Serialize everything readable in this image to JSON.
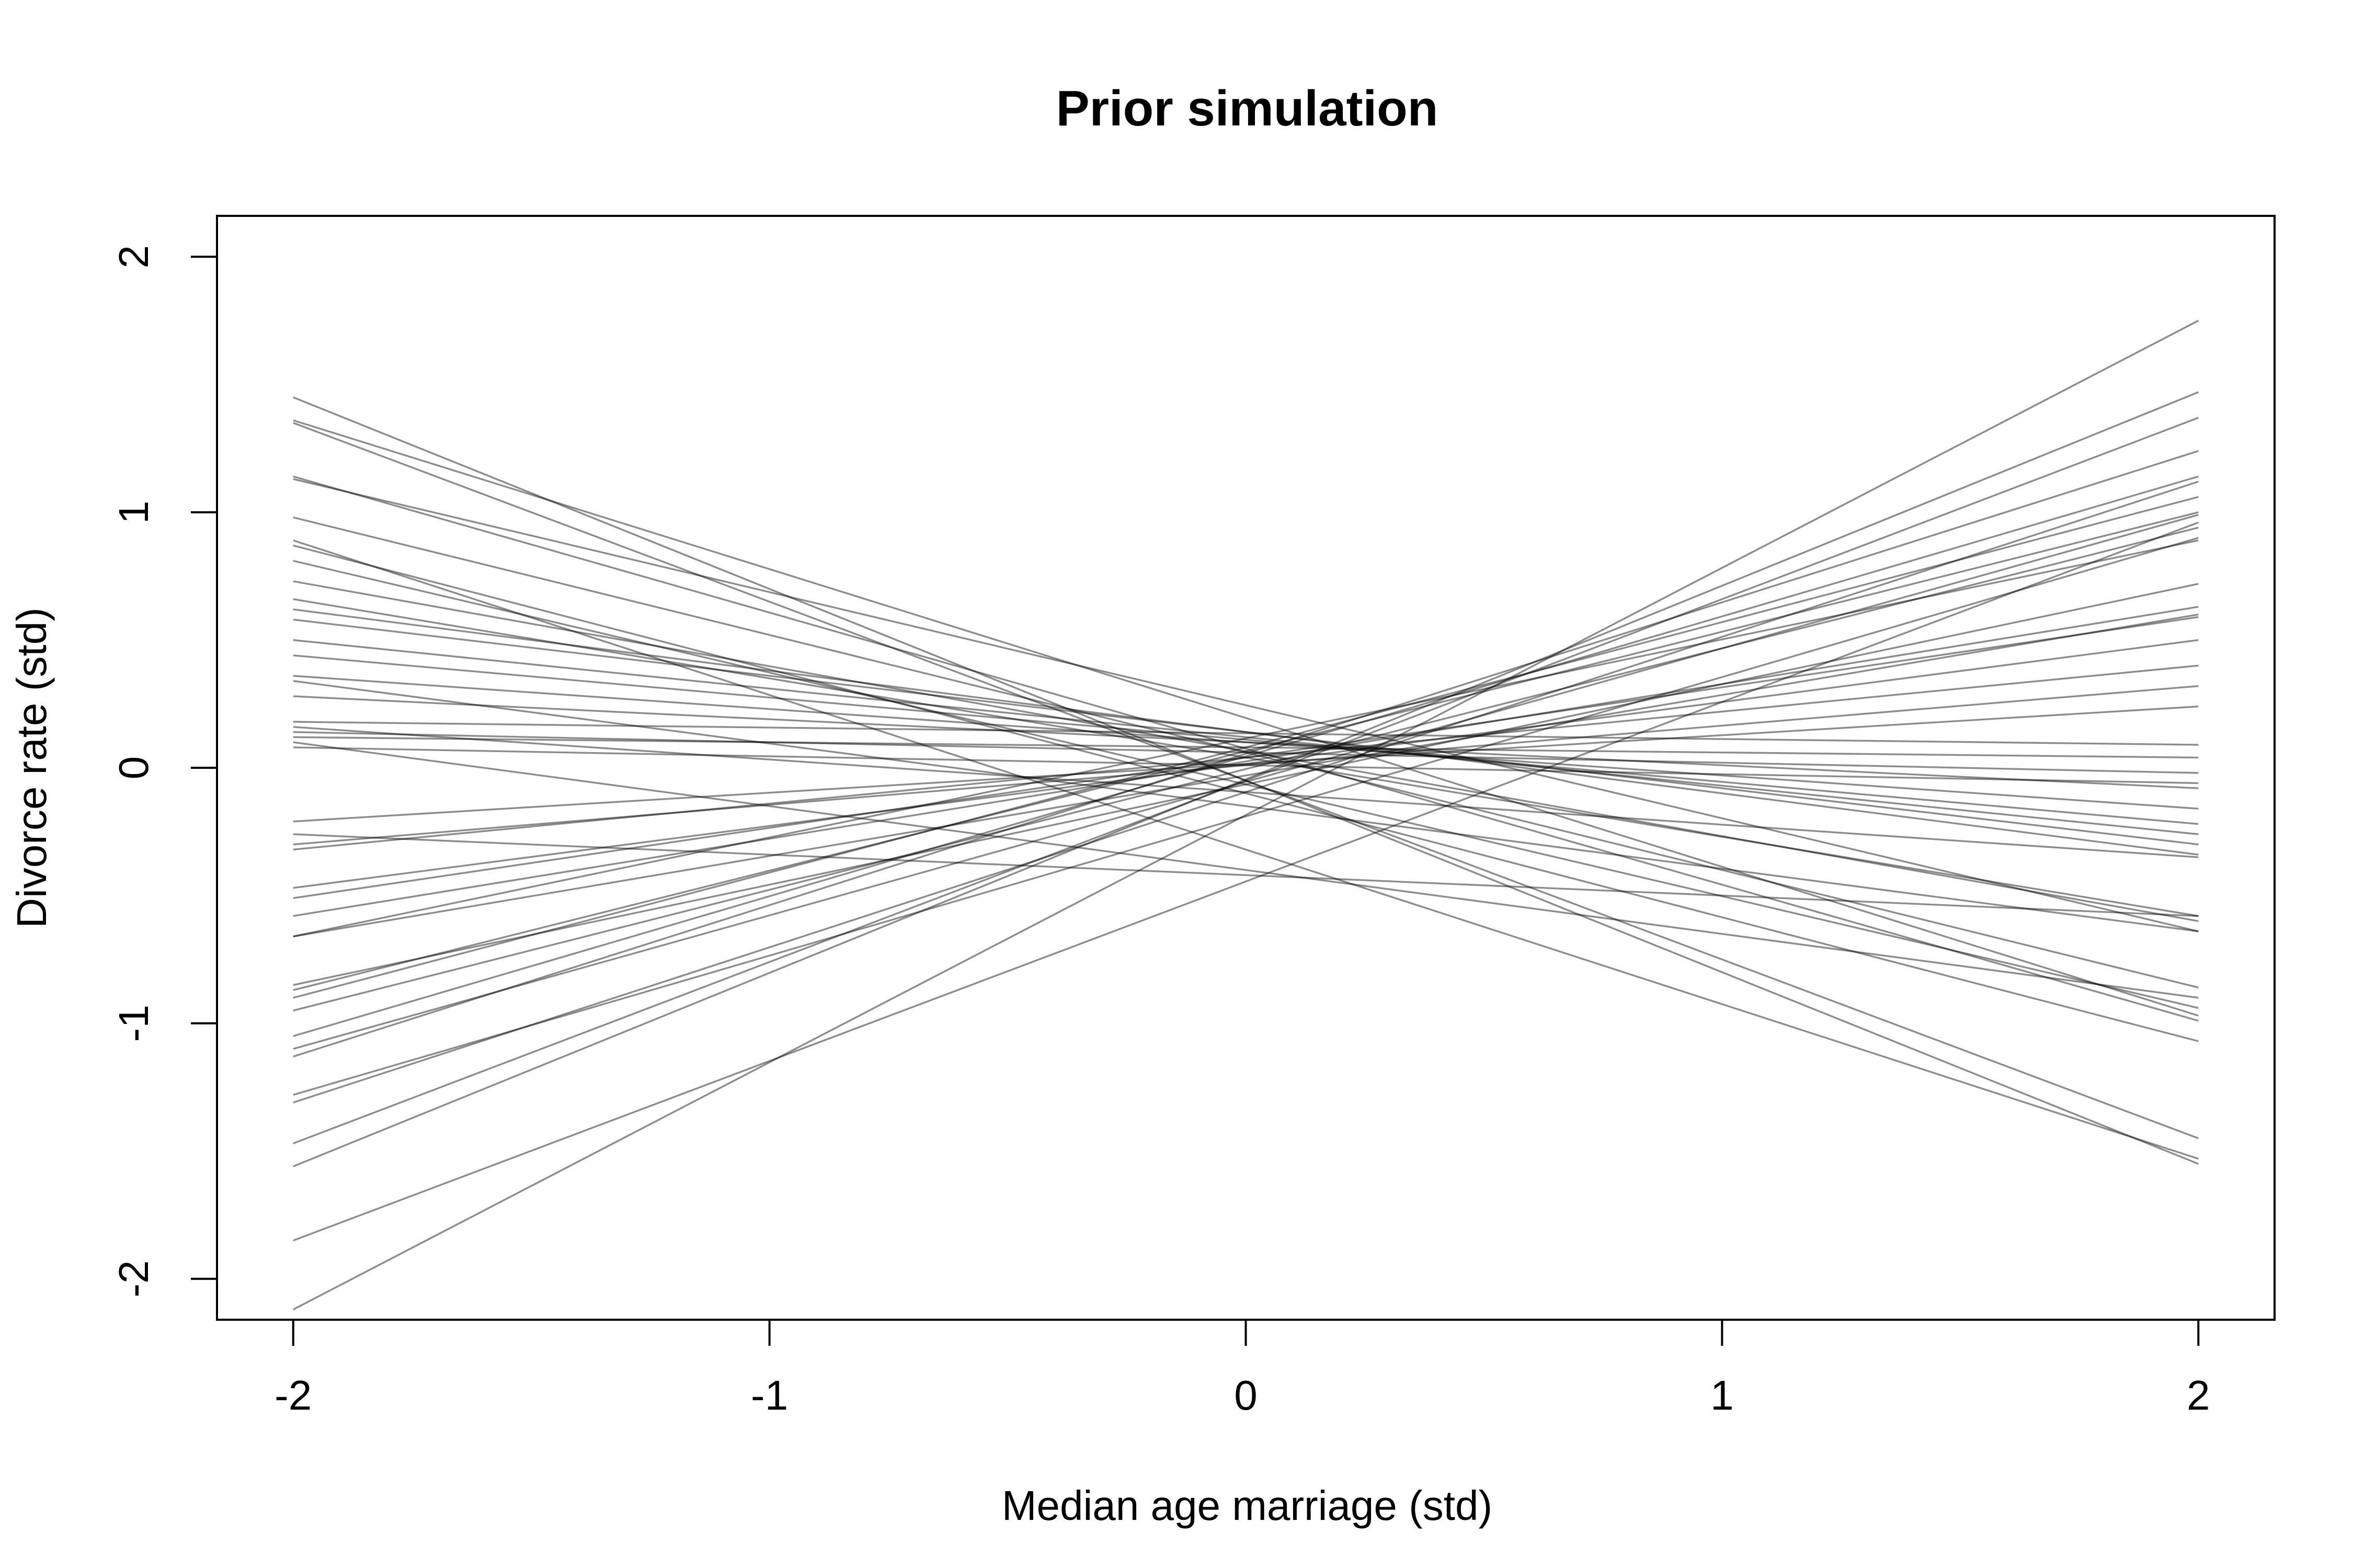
{
  "chart_data": {
    "type": "line",
    "title": "Prior simulation",
    "xlabel": "Median age marriage (std)",
    "ylabel": "Divorce rate (std)",
    "xlim": [
      -2.16,
      2.16
    ],
    "ylim": [
      -2.16,
      2.16
    ],
    "x_ticks": [
      {
        "value": -2,
        "label": "-2"
      },
      {
        "value": -1,
        "label": "-1"
      },
      {
        "value": 0,
        "label": "0"
      },
      {
        "value": 1,
        "label": "1"
      },
      {
        "value": 2,
        "label": "2"
      }
    ],
    "y_ticks": [
      {
        "value": -2,
        "label": "-2"
      },
      {
        "value": -1,
        "label": "-1"
      },
      {
        "value": 0,
        "label": "0"
      },
      {
        "value": 1,
        "label": "1"
      },
      {
        "value": 2,
        "label": "2"
      }
    ],
    "grid": false,
    "line_color": "#000000",
    "line_opacity": 0.45,
    "x": [
      -2,
      2
    ],
    "series": [
      {
        "values": [
          1.45,
          -1.55
        ]
      },
      {
        "values": [
          1.36,
          -0.97
        ]
      },
      {
        "values": [
          1.35,
          -1.45
        ]
      },
      {
        "values": [
          1.14,
          -0.99
        ]
      },
      {
        "values": [
          1.13,
          -0.64
        ]
      },
      {
        "values": [
          0.98,
          -0.86
        ]
      },
      {
        "values": [
          0.89,
          -1.53
        ]
      },
      {
        "values": [
          0.87,
          -1.07
        ]
      },
      {
        "values": [
          0.81,
          -0.94
        ]
      },
      {
        "values": [
          0.73,
          -0.6
        ]
      },
      {
        "values": [
          0.66,
          -0.58
        ]
      },
      {
        "values": [
          0.62,
          -0.34
        ]
      },
      {
        "values": [
          0.58,
          -0.3
        ]
      },
      {
        "values": [
          0.5,
          -0.26
        ]
      },
      {
        "values": [
          0.44,
          -0.22
        ]
      },
      {
        "values": [
          0.36,
          -0.16
        ]
      },
      {
        "values": [
          0.34,
          -0.64
        ]
      },
      {
        "values": [
          0.28,
          -0.08
        ]
      },
      {
        "values": [
          0.18,
          0.09
        ]
      },
      {
        "values": [
          0.16,
          -0.35
        ]
      },
      {
        "values": [
          0.14,
          -0.02
        ]
      },
      {
        "values": [
          0.12,
          0.04
        ]
      },
      {
        "values": [
          0.1,
          -0.9
        ]
      },
      {
        "values": [
          0.08,
          -0.06
        ]
      },
      {
        "values": [
          -0.21,
          0.24
        ]
      },
      {
        "values": [
          -0.26,
          -0.58
        ]
      },
      {
        "values": [
          -0.3,
          0.32
        ]
      },
      {
        "values": [
          -0.32,
          0.4
        ]
      },
      {
        "values": [
          -0.47,
          0.5
        ]
      },
      {
        "values": [
          -0.51,
          0.59
        ]
      },
      {
        "values": [
          -0.58,
          0.63
        ]
      },
      {
        "values": [
          -0.66,
          0.89
        ]
      },
      {
        "values": [
          -0.66,
          0.6
        ]
      },
      {
        "values": [
          -0.85,
          0.72
        ]
      },
      {
        "values": [
          -0.87,
          1.0
        ]
      },
      {
        "values": [
          -0.9,
          1.06
        ]
      },
      {
        "values": [
          -0.95,
          0.94
        ]
      },
      {
        "values": [
          -1.05,
          1.14
        ]
      },
      {
        "values": [
          -1.1,
          0.99
        ]
      },
      {
        "values": [
          -1.13,
          1.24
        ]
      },
      {
        "values": [
          -1.28,
          0.9
        ]
      },
      {
        "values": [
          -1.31,
          1.12
        ]
      },
      {
        "values": [
          -1.47,
          1.37
        ]
      },
      {
        "values": [
          -1.56,
          1.47
        ]
      },
      {
        "values": [
          -1.85,
          0.96
        ]
      },
      {
        "values": [
          -2.12,
          1.75
        ]
      }
    ]
  }
}
